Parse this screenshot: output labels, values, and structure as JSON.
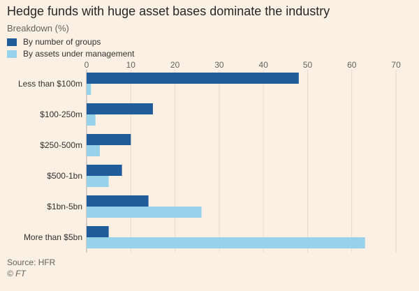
{
  "title": "Hedge funds with huge asset bases dominate the industry",
  "subtitle": "Breakdown (%)",
  "legend": {
    "items": [
      {
        "label": "By number of groups",
        "color": "#1f5c99"
      },
      {
        "label": "By assets under management",
        "color": "#96d3eb"
      }
    ]
  },
  "footer": {
    "source": "Source: HFR",
    "credit": "© FT"
  },
  "chart_data": {
    "type": "bar",
    "orientation": "horizontal",
    "categories": [
      "Less than $100m",
      "$100-250m",
      "$250-500m",
      "$500-1bn",
      "$1bn-5bn",
      "More than $5bn"
    ],
    "series": [
      {
        "name": "By number of groups",
        "color": "#1f5c99",
        "values": [
          48,
          15,
          10,
          8,
          14,
          5
        ]
      },
      {
        "name": "By assets under management",
        "color": "#96d3eb",
        "values": [
          1,
          2,
          3,
          5,
          26,
          63
        ]
      }
    ],
    "x_ticks": [
      0,
      10,
      20,
      30,
      40,
      50,
      60,
      70
    ],
    "xlim": [
      0,
      70
    ],
    "axis_position": "top",
    "grid": true,
    "legend_position": "top-left"
  }
}
